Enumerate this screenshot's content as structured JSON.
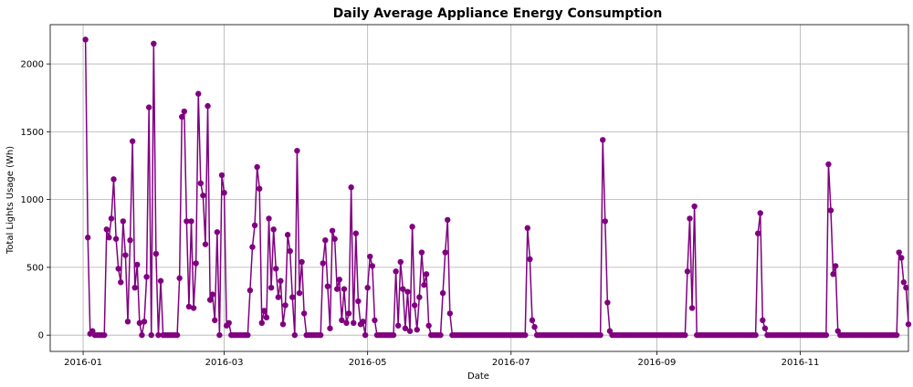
{
  "chart_data": {
    "type": "line",
    "title": "Daily Average Appliance Energy Consumption",
    "xlabel": "Date",
    "ylabel": "Total Lights Usage (Wh)",
    "x_start": "2016-01-02",
    "x_end": "2016-12-02",
    "xlim": [
      "2015-12-18",
      "2016-12-17"
    ],
    "ylim": [
      -120,
      2290
    ],
    "x_ticks": [
      "2016-01",
      "2016-03",
      "2016-05",
      "2016-07",
      "2016-09",
      "2016-11"
    ],
    "y_ticks": [
      0,
      500,
      1000,
      1500,
      2000
    ],
    "grid": true,
    "color": "#800080",
    "marker": "circle",
    "series": [
      {
        "values": [
          2180,
          720,
          10,
          30,
          0,
          0,
          0,
          0,
          0,
          780,
          720,
          860,
          1150,
          710,
          490,
          390,
          840,
          590,
          100,
          700,
          1430,
          350,
          520,
          90,
          0,
          100,
          430,
          1680,
          0,
          2150,
          600,
          0,
          400,
          0,
          0,
          0,
          0,
          0,
          0,
          0,
          420,
          1610,
          1650,
          840,
          210,
          840,
          200,
          530,
          1780,
          1120,
          1030,
          670,
          1690,
          260,
          300,
          110,
          760,
          0,
          1180,
          1050,
          70,
          90,
          0,
          0,
          0,
          0,
          0,
          0,
          0,
          0,
          330,
          650,
          810,
          1240,
          1080,
          90,
          180,
          130,
          860,
          350,
          780,
          490,
          280,
          400,
          80,
          220,
          740,
          620,
          280,
          0,
          1360,
          310,
          540,
          160,
          0,
          0,
          0,
          0,
          0,
          0,
          0,
          530,
          700,
          360,
          50,
          770,
          710,
          340,
          410,
          110,
          340,
          90,
          160,
          1090,
          90,
          750,
          250,
          80,
          100,
          0,
          350,
          580,
          510,
          110,
          0,
          0,
          0,
          0,
          0,
          0,
          0,
          0,
          470,
          70,
          540,
          340,
          50,
          320,
          30,
          800,
          220,
          40,
          280,
          610,
          370,
          450,
          70,
          0,
          0,
          0,
          0,
          0,
          310,
          610,
          850,
          160,
          0,
          0,
          0,
          0,
          0,
          0,
          0,
          0,
          0,
          0,
          0,
          0,
          0,
          0,
          0,
          0,
          0,
          0,
          0,
          0,
          0,
          0,
          0,
          0,
          0,
          0,
          0,
          0,
          0,
          0,
          0,
          0,
          790,
          560,
          110,
          60,
          0,
          0,
          0,
          0,
          0,
          0,
          0,
          0,
          0,
          0,
          0,
          0,
          0,
          0,
          0,
          0,
          0,
          0,
          0,
          0,
          0,
          0,
          0,
          0,
          0,
          0,
          0,
          0,
          1440,
          840,
          240,
          30,
          0,
          0,
          0,
          0,
          0,
          0,
          0,
          0,
          0,
          0,
          0,
          0,
          0,
          0,
          0,
          0,
          0,
          0,
          0,
          0,
          0,
          0,
          0,
          0,
          0,
          0,
          0,
          0,
          0,
          0,
          0,
          0,
          470,
          860,
          200,
          950,
          0,
          0,
          0,
          0,
          0,
          0,
          0,
          0,
          0,
          0,
          0,
          0,
          0,
          0,
          0,
          0,
          0,
          0,
          0,
          0,
          0,
          0,
          0,
          0,
          0,
          0,
          750,
          900,
          110,
          50,
          0,
          0,
          0,
          0,
          0,
          0,
          0,
          0,
          0,
          0,
          0,
          0,
          0,
          0,
          0,
          0,
          0,
          0,
          0,
          0,
          0,
          0,
          0,
          0,
          0,
          0,
          1260,
          920,
          450,
          510,
          30,
          0,
          0,
          0,
          0,
          0,
          0,
          0,
          0,
          0,
          0,
          0,
          0,
          0,
          0,
          0,
          0,
          0,
          0,
          0,
          0,
          0,
          0,
          0,
          0,
          0,
          610,
          570,
          390,
          350,
          80
        ]
      }
    ]
  }
}
